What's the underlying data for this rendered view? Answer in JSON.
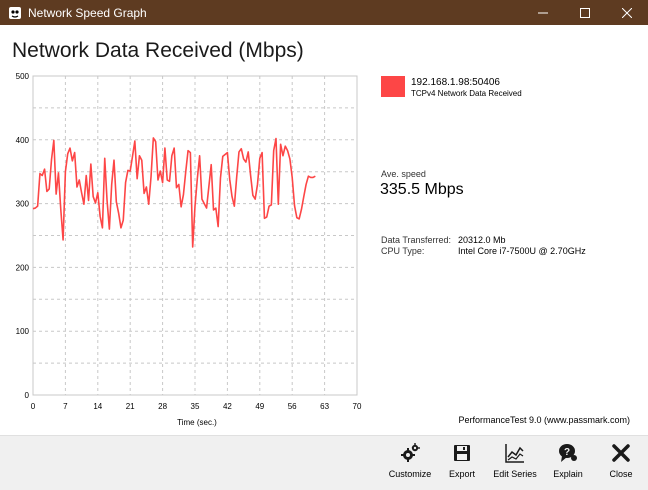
{
  "window": {
    "title": "Network Speed Graph",
    "controls": [
      "minimize",
      "maximize",
      "close"
    ]
  },
  "chart_data": {
    "type": "line",
    "title": "Network Data Received (Mbps)",
    "xlabel": "Time (sec.)",
    "ylabel": "",
    "xlim": [
      0,
      70
    ],
    "ylim": [
      0,
      500
    ],
    "x_ticks": [
      0,
      7,
      14,
      21,
      28,
      35,
      42,
      49,
      56,
      63,
      70
    ],
    "y_ticks": [
      0,
      100,
      200,
      300,
      400,
      500
    ],
    "grid": true,
    "series": [
      {
        "name": "192.168.1.98:50406",
        "color": "#fd4646",
        "x": [
          0,
          0.5,
          1,
          1.5,
          2,
          2.5,
          3,
          3.5,
          4,
          4.5,
          5,
          5.5,
          6,
          6.5,
          7,
          7.5,
          8,
          8.5,
          9,
          9.5,
          10,
          10.5,
          11,
          11.5,
          12,
          12.5,
          13,
          13.5,
          14,
          14.5,
          15,
          15.5,
          16,
          16.5,
          17,
          17.5,
          18,
          18.5,
          19,
          19.5,
          20,
          20.5,
          21,
          21.5,
          22,
          22.5,
          23,
          23.5,
          24,
          24.5,
          25,
          25.5,
          26,
          26.5,
          27,
          27.5,
          28,
          28.5,
          29,
          29.5,
          30,
          30.5,
          31,
          31.5,
          32,
          32.5,
          33,
          33.5,
          34,
          34.5,
          35,
          35.5,
          36,
          36.5,
          37,
          37.5,
          38,
          38.5,
          39,
          39.5,
          40,
          40.5,
          41,
          41.5,
          42,
          42.5,
          43,
          43.5,
          44,
          44.5,
          45,
          45.5,
          46,
          46.5,
          47,
          47.5,
          48,
          48.5,
          49,
          49.5,
          50,
          50.5,
          51,
          51.5,
          52,
          52.5,
          53,
          53.5,
          54,
          54.5,
          55,
          55.5,
          56,
          56.5,
          57,
          57.5,
          58,
          58.5,
          59,
          59.5,
          60,
          60.5,
          61
        ],
        "values": [
          292,
          293,
          296,
          347,
          344,
          354,
          319,
          323,
          369,
          399,
          315,
          348,
          291,
          243,
          350,
          378,
          387,
          367,
          380,
          326,
          337,
          317,
          299,
          344,
          305,
          362,
          311,
          301,
          317,
          280,
          262,
          371,
          305,
          260,
          330,
          368,
          303,
          285,
          262,
          274,
          333,
          352,
          351,
          374,
          398,
          339,
          375,
          368,
          316,
          326,
          299,
          342,
          403,
          397,
          337,
          351,
          333,
          387,
          337,
          335,
          375,
          387,
          325,
          330,
          295,
          314,
          350,
          383,
          380,
          232,
          296,
          339,
          375,
          307,
          300,
          293,
          327,
          361,
          290,
          293,
          264,
          340,
          374,
          377,
          380,
          338,
          311,
          296,
          341,
          381,
          386,
          370,
          365,
          381,
          345,
          313,
          307,
          330,
          371,
          380,
          277,
          279,
          296,
          298,
          383,
          402,
          299,
          393,
          375,
          390,
          383,
          370,
          341,
          297,
          278,
          276,
          291,
          311,
          330,
          343,
          341,
          341,
          343
        ]
      }
    ]
  },
  "legend": {
    "series_name": "192.168.1.98:50406",
    "series_desc": "TCPv4 Network Data Received",
    "color": "#fd4646"
  },
  "stats": {
    "ave_label": "Ave. speed",
    "ave_value": "335.5 Mbps",
    "transferred_label": "Data Transferred:",
    "transferred_value": "20312.0 Mb",
    "cpu_label": "CPU Type:",
    "cpu_value": "Intel Core i7-7500U @ 2.70GHz"
  },
  "credit": "PerformanceTest 9.0 (www.passmark.com)",
  "toolbar": {
    "customize": "Customize",
    "export": "Export",
    "edit_series": "Edit Series",
    "explain": "Explain",
    "close": "Close"
  }
}
